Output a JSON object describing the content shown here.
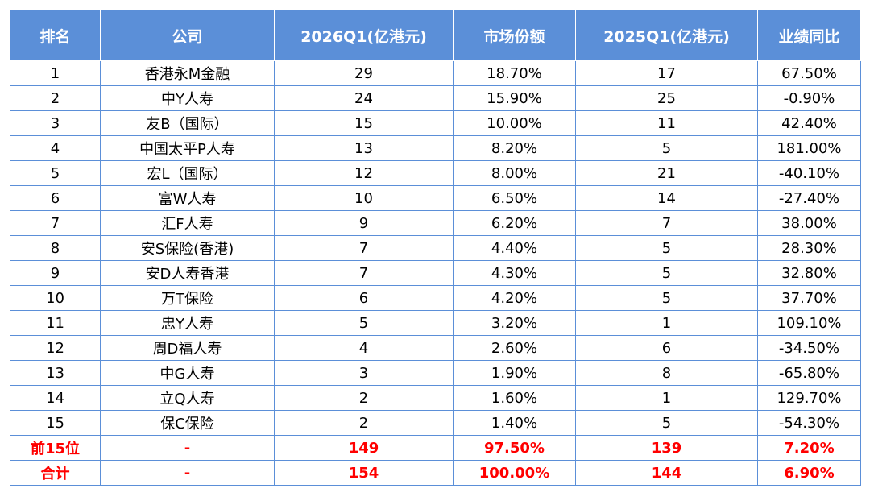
{
  "table": {
    "headers": [
      "排名",
      "公司",
      "2026Q1(亿港元)",
      "市场份额",
      "2025Q1(亿港元)",
      "业绩同比"
    ],
    "rows": [
      [
        "1",
        "香港永M金融",
        "29",
        "18.70%",
        "17",
        "67.50%"
      ],
      [
        "2",
        "中Y人寿",
        "24",
        "15.90%",
        "25",
        "-0.90%"
      ],
      [
        "3",
        "友B（国际）",
        "15",
        "10.00%",
        "11",
        "42.40%"
      ],
      [
        "4",
        "中国太平P人寿",
        "13",
        "8.20%",
        "5",
        "181.00%"
      ],
      [
        "5",
        "宏L（国际）",
        "12",
        "8.00%",
        "21",
        "-40.10%"
      ],
      [
        "6",
        "富W人寿",
        "10",
        "6.50%",
        "14",
        "-27.40%"
      ],
      [
        "7",
        "汇F人寿",
        "9",
        "6.20%",
        "7",
        "38.00%"
      ],
      [
        "8",
        "安S保险(香港)",
        "7",
        "4.40%",
        "5",
        "28.30%"
      ],
      [
        "9",
        "安D人寿香港",
        "7",
        "4.30%",
        "5",
        "32.80%"
      ],
      [
        "10",
        "万T保险",
        "6",
        "4.20%",
        "5",
        "37.70%"
      ],
      [
        "11",
        "忠Y人寿",
        "5",
        "3.20%",
        "1",
        "109.10%"
      ],
      [
        "12",
        "周D福人寿",
        "4",
        "2.60%",
        "6",
        "-34.50%"
      ],
      [
        "13",
        "中G人寿",
        "3",
        "1.90%",
        "8",
        "-65.80%"
      ],
      [
        "14",
        "立Q人寿",
        "2",
        "1.60%",
        "1",
        "129.70%"
      ],
      [
        "15",
        "保C保险",
        "2",
        "1.40%",
        "5",
        "-54.30%"
      ]
    ],
    "summary_rows": [
      [
        "前15位",
        "-",
        "149",
        "97.50%",
        "139",
        "7.20%"
      ],
      [
        "合计",
        "-",
        "154",
        "100.00%",
        "144",
        "6.90%"
      ]
    ]
  },
  "colors": {
    "header_bg": "#5b8fd8",
    "border": "#5b8fd8",
    "summary_text": "#ff0000"
  }
}
